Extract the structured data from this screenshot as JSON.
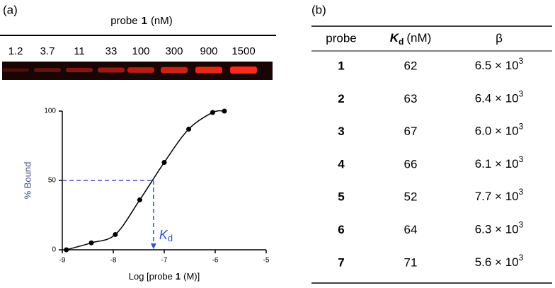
{
  "panel_a": {
    "label": "(a)",
    "gel": {
      "title": [
        "probe",
        "1",
        "(nM)"
      ],
      "lanes": [
        "1.2",
        "3.7",
        "11",
        "33",
        "100",
        "300",
        "900",
        "1500"
      ]
    }
  },
  "chart_data": {
    "type": "scatter",
    "x_label": [
      "Log [probe",
      "1",
      "(M)]"
    ],
    "y_label": "% Bound",
    "x": [
      -8.92,
      -8.43,
      -7.96,
      -7.48,
      -7.0,
      -6.52,
      -6.05,
      -5.82
    ],
    "series": [
      {
        "color": "#000000",
        "values": [
          0,
          5,
          11,
          36,
          63,
          87,
          99,
          100
        ]
      }
    ],
    "xlim": [
      -9,
      -5
    ],
    "ylim": [
      0,
      100
    ],
    "xticks": [
      -9,
      -8,
      -7,
      -6,
      -5
    ],
    "yticks": [
      0,
      50,
      100
    ],
    "annotation": {
      "text": [
        "K",
        "d"
      ],
      "x": -7.21,
      "y": 50,
      "color": "#3355cc"
    }
  },
  "panel_b": {
    "label": "(b)",
    "table": {
      "header": {
        "probe": "probe",
        "kd": [
          "K",
          "d",
          "(nM)"
        ],
        "beta": "β"
      },
      "rows": [
        {
          "probe": "1",
          "kd": "62",
          "beta": [
            "6.5 × 10",
            "3"
          ]
        },
        {
          "probe": "2",
          "kd": "63",
          "beta": [
            "6.4 × 10",
            "3"
          ]
        },
        {
          "probe": "3",
          "kd": "67",
          "beta": [
            "6.0 × 10",
            "3"
          ]
        },
        {
          "probe": "4",
          "kd": "66",
          "beta": [
            "6.1 × 10",
            "3"
          ]
        },
        {
          "probe": "5",
          "kd": "52",
          "beta": [
            "7.7 × 10",
            "3"
          ]
        },
        {
          "probe": "6",
          "kd": "64",
          "beta": [
            "6.3 × 10",
            "3"
          ]
        },
        {
          "probe": "7",
          "kd": "71",
          "beta": [
            "5.6 × 10",
            "3"
          ]
        }
      ]
    }
  }
}
